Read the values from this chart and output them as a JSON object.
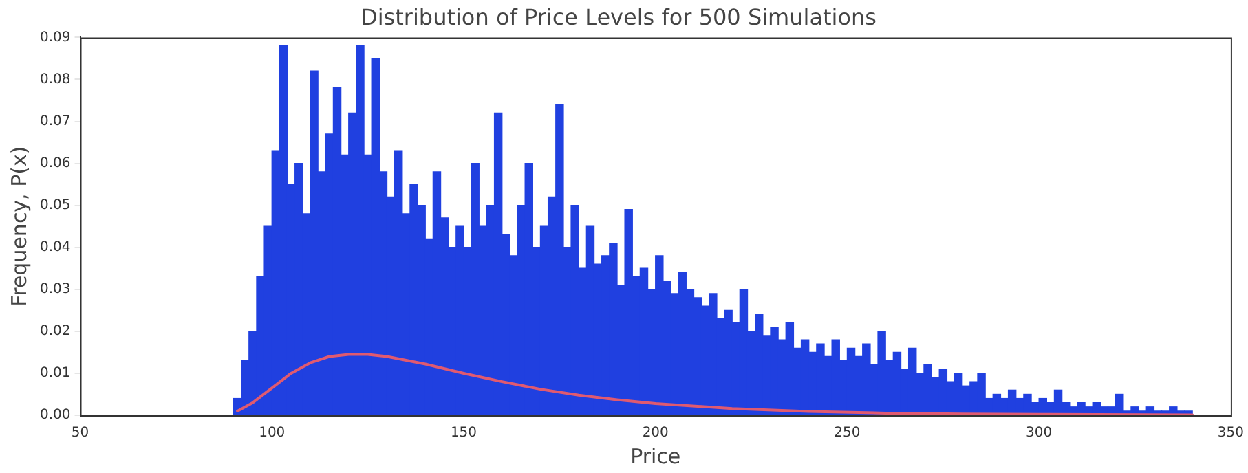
{
  "chart_data": {
    "type": "histogram",
    "title": "Distribution of Price Levels for 500 Simulations",
    "xlabel": "Price",
    "ylabel": "Frequency, P(x)",
    "bins": [
      90,
      92,
      94,
      96,
      98,
      100,
      102,
      104,
      106,
      108,
      110,
      112,
      114,
      116,
      118,
      120,
      122,
      124,
      126,
      128,
      130,
      132,
      134,
      136,
      138,
      140,
      142,
      144,
      146,
      148,
      150,
      152,
      154,
      156,
      158,
      160,
      162,
      164,
      166,
      168,
      170,
      172,
      174,
      176,
      178,
      180,
      182,
      184,
      186,
      188,
      190,
      192,
      194,
      196,
      198,
      200,
      202,
      204,
      206,
      208,
      210,
      212,
      214,
      216,
      218,
      220,
      222,
      224,
      226,
      228,
      230,
      232,
      234,
      236,
      238,
      240,
      242,
      244,
      246,
      248,
      250,
      252,
      254,
      256,
      258,
      260,
      262,
      264,
      266,
      268,
      270,
      272,
      274,
      276,
      278,
      280,
      282,
      284,
      286,
      288,
      290,
      292,
      294,
      296,
      298,
      300,
      302,
      304,
      306,
      308,
      310,
      312,
      314,
      316,
      318,
      320,
      322,
      324,
      326,
      328,
      330,
      332,
      334,
      336,
      338,
      340
    ],
    "values": [
      0.004,
      0.013,
      0.02,
      0.033,
      0.045,
      0.063,
      0.088,
      0.055,
      0.06,
      0.048,
      0.082,
      0.058,
      0.067,
      0.078,
      0.062,
      0.072,
      0.088,
      0.062,
      0.085,
      0.058,
      0.052,
      0.063,
      0.048,
      0.055,
      0.05,
      0.042,
      0.058,
      0.047,
      0.04,
      0.045,
      0.04,
      0.06,
      0.045,
      0.05,
      0.072,
      0.043,
      0.038,
      0.05,
      0.06,
      0.04,
      0.045,
      0.052,
      0.074,
      0.04,
      0.05,
      0.035,
      0.045,
      0.036,
      0.038,
      0.041,
      0.031,
      0.049,
      0.033,
      0.035,
      0.03,
      0.038,
      0.032,
      0.029,
      0.034,
      0.03,
      0.028,
      0.026,
      0.029,
      0.023,
      0.025,
      0.022,
      0.03,
      0.02,
      0.024,
      0.019,
      0.021,
      0.018,
      0.022,
      0.016,
      0.018,
      0.015,
      0.017,
      0.014,
      0.018,
      0.013,
      0.016,
      0.014,
      0.017,
      0.012,
      0.02,
      0.013,
      0.015,
      0.011,
      0.016,
      0.01,
      0.012,
      0.009,
      0.011,
      0.008,
      0.01,
      0.007,
      0.008,
      0.01,
      0.004,
      0.005,
      0.004,
      0.006,
      0.004,
      0.005,
      0.003,
      0.004,
      0.003,
      0.006,
      0.003,
      0.002,
      0.003,
      0.002,
      0.003,
      0.002,
      0.002,
      0.005,
      0.001,
      0.002,
      0.001,
      0.002,
      0.001,
      0.001,
      0.002,
      0.001,
      0.001
    ],
    "color": "#2040e0",
    "series": [
      {
        "type": "line",
        "color": "#e05a70",
        "x": [
          91,
          95,
          100,
          105,
          110,
          115,
          120,
          125,
          130,
          140,
          150,
          160,
          170,
          180,
          190,
          200,
          220,
          240,
          260,
          280,
          300,
          340
        ],
        "values": [
          0.001,
          0.003,
          0.0065,
          0.01,
          0.0125,
          0.014,
          0.0145,
          0.0145,
          0.014,
          0.0122,
          0.01,
          0.008,
          0.0062,
          0.0048,
          0.0037,
          0.0028,
          0.0016,
          0.0009,
          0.0005,
          0.0003,
          0.0002,
          0.0001
        ]
      }
    ],
    "xlim": [
      50,
      350
    ],
    "xticks": [
      50,
      100,
      150,
      200,
      250,
      300,
      350
    ],
    "ylim": [
      0,
      0.09
    ],
    "yticks": [
      {
        "value": 0,
        "label": "0.00"
      },
      {
        "value": 0.01,
        "label": "0.01"
      },
      {
        "value": 0.02,
        "label": "0.02"
      },
      {
        "value": 0.03,
        "label": "0.03"
      },
      {
        "value": 0.04,
        "label": "0.04"
      },
      {
        "value": 0.05,
        "label": "0.05"
      },
      {
        "value": 0.06,
        "label": "0.06"
      },
      {
        "value": 0.07,
        "label": "0.07"
      },
      {
        "value": 0.08,
        "label": "0.08"
      },
      {
        "value": 0.09,
        "label": "0.09"
      }
    ],
    "grid": false,
    "legend": false
  }
}
